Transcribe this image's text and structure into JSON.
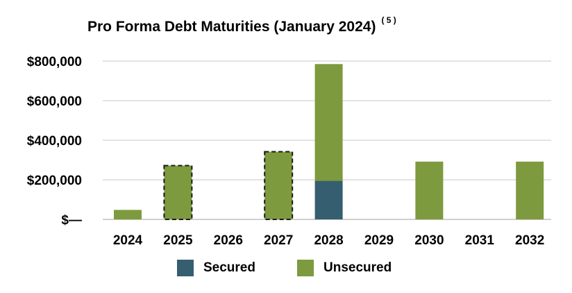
{
  "chart_data": {
    "type": "bar",
    "title": "Pro Forma Debt Maturities (January 2024)",
    "footnote": "( 5 )",
    "categories": [
      "2024",
      "2025",
      "2026",
      "2027",
      "2028",
      "2029",
      "2030",
      "2031",
      "2032"
    ],
    "series": [
      {
        "name": "Secured",
        "color": "#355e70",
        "values": [
          0,
          0,
          0,
          0,
          195000,
          0,
          0,
          0,
          0
        ]
      },
      {
        "name": "Unsecured",
        "color": "#7d9a3e",
        "values": [
          48000,
          272000,
          0,
          342000,
          590000,
          0,
          292000,
          0,
          292000
        ]
      }
    ],
    "dashed_outline_categories": [
      "2025",
      "2027"
    ],
    "stacked": true,
    "ylim": [
      0,
      800000
    ],
    "yticks": [
      {
        "value": 0,
        "label": "$—"
      },
      {
        "value": 200000,
        "label": "$200,000"
      },
      {
        "value": 400000,
        "label": "$400,000"
      },
      {
        "value": 600000,
        "label": "$600,000"
      },
      {
        "value": 800000,
        "label": "$800,000"
      }
    ],
    "grid": true,
    "legend_position": "bottom"
  }
}
